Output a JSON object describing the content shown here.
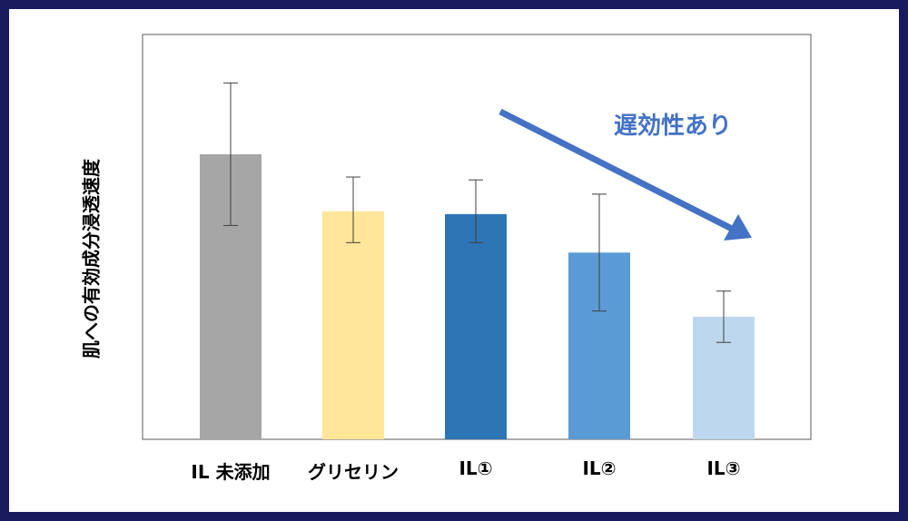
{
  "chart_data": {
    "type": "bar",
    "title": "",
    "ylabel": "肌への有効成分浸透速度",
    "xlabel": "",
    "categories": [
      "IL 未添加",
      "グリセリン",
      "IL①",
      "IL②",
      "IL③"
    ],
    "values": [
      100,
      80,
      79,
      65.5,
      43
    ],
    "error_low": [
      75,
      69,
      69,
      45,
      34
    ],
    "error_high": [
      125,
      92,
      91,
      86,
      52
    ],
    "ylim": [
      0,
      142
    ],
    "grid": false,
    "colors": [
      "#a6a6a6",
      "#ffe699",
      "#2e75b6",
      "#5b9bd5",
      "#bdd7ee"
    ],
    "annotation": {
      "text": "遅効性あり",
      "color": "#4472c4"
    }
  }
}
